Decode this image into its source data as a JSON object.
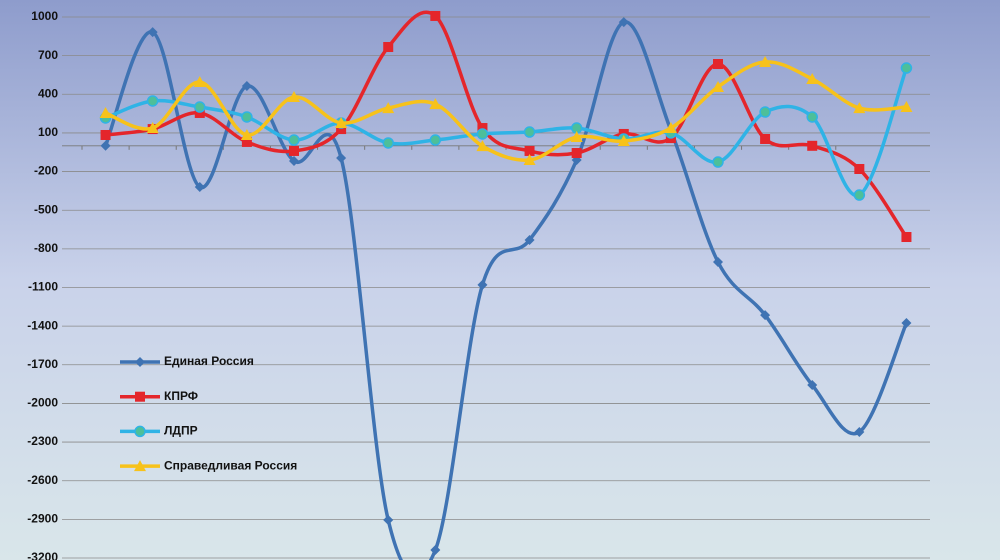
{
  "chart_data": {
    "type": "line",
    "categories": [
      null,
      null,
      null,
      null,
      null,
      null,
      null,
      null,
      null,
      null,
      null,
      null,
      null,
      null,
      null,
      null,
      null,
      null
    ],
    "series": [
      {
        "name": "Единая Россия",
        "color": "#3f73b3",
        "marker": "diamond",
        "values": [
          0,
          883,
          -320,
          464,
          -118,
          -95,
          -2905,
          -3138,
          -1080,
          -731,
          -110,
          960,
          120,
          -902,
          -1314,
          -1857,
          -2222,
          -1376
        ]
      },
      {
        "name": "КПРФ",
        "color": "#e4262b",
        "marker": "square",
        "values": [
          84,
          130,
          255,
          30,
          -40,
          130,
          767,
          1008,
          138,
          -40,
          -56,
          92,
          60,
          635,
          53,
          0,
          -180,
          -708
        ]
      },
      {
        "name": "ЛДПР",
        "color": "#2fb3e6",
        "marker": "circle",
        "values": [
          216,
          348,
          301,
          224,
          45,
          177,
          22,
          45,
          92,
          107,
          138,
          53,
          100,
          -126,
          262,
          224,
          -382,
          604
        ]
      },
      {
        "name": "Справедливая Россия",
        "color": "#f7c21a",
        "marker": "triangle",
        "values": [
          255,
          138,
          495,
          84,
          379,
          177,
          293,
          324,
          -2,
          -110,
          68,
          37,
          138,
          457,
          651,
          519,
          293,
          301
        ]
      }
    ],
    "ylim": [
      -3200,
      1000
    ],
    "yticks": [
      1000,
      700,
      400,
      100,
      -200,
      -500,
      -800,
      -1100,
      -1400,
      -1700,
      -2000,
      -2300,
      -2600,
      -2900,
      -3200
    ],
    "grid": true,
    "legend": "left"
  }
}
